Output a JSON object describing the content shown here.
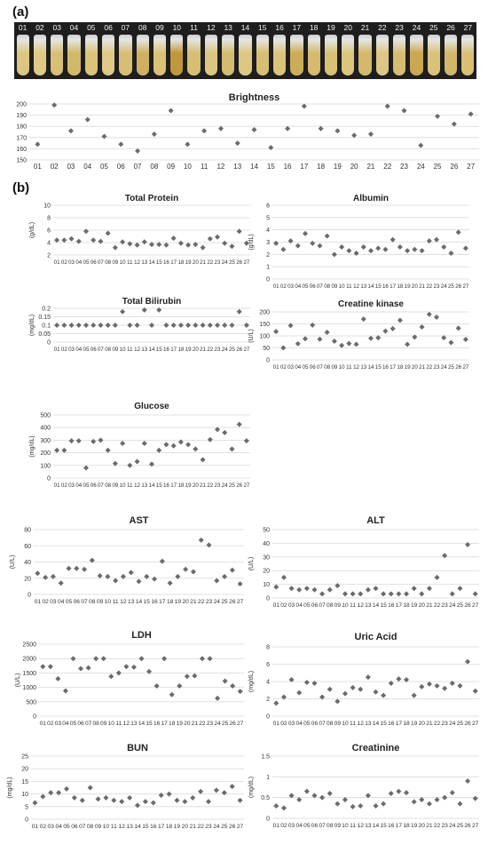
{
  "panel_a_label": "(a)",
  "panel_b_label": "(b)",
  "photo": {
    "tube_labels": [
      "01",
      "02",
      "03",
      "04",
      "05",
      "06",
      "07",
      "08",
      "09",
      "10",
      "11",
      "12",
      "13",
      "14",
      "15",
      "16",
      "17",
      "18",
      "19",
      "20",
      "21",
      "22",
      "23",
      "24",
      "25",
      "26",
      "27"
    ],
    "tube_colors": [
      "#e6cf86",
      "#e9d38a",
      "#e3c97a",
      "#dcc16e",
      "#e5cc7e",
      "#e8d28c",
      "#e2c778",
      "#d9b863",
      "#e4ca7c",
      "#c99d3c",
      "#e1c677",
      "#e7cf86",
      "#dec371",
      "#e8d08a",
      "#e2c778",
      "#e6cc80",
      "#d6b35c",
      "#dfc273",
      "#e3c97a",
      "#e6ce84",
      "#ddc070",
      "#e8d08b",
      "#e1c576",
      "#d4ae55",
      "#e5cb7e",
      "#dcbf6e",
      "#e3c87b"
    ]
  },
  "chart_data": [
    {
      "id": "brightness",
      "type": "scatter",
      "title": "Brightness",
      "ylabel": "",
      "ylim": [
        150,
        200
      ],
      "yticks": [
        150,
        160,
        170,
        180,
        190,
        200
      ],
      "categories": [
        "01",
        "02",
        "03",
        "04",
        "05",
        "06",
        "07",
        "08",
        "09",
        "10",
        "11",
        "12",
        "13",
        "14",
        "15",
        "16",
        "17",
        "18",
        "19",
        "20",
        "21",
        "22",
        "23",
        "24",
        "25",
        "26",
        "27"
      ],
      "values": [
        164,
        199,
        176,
        186,
        171,
        164,
        158,
        173,
        194,
        164,
        176,
        178,
        165,
        177,
        161,
        178,
        198,
        178,
        176,
        172,
        173,
        198,
        194,
        163,
        189,
        182,
        191
      ]
    },
    {
      "id": "total-protein",
      "type": "scatter",
      "title": "Total Protein",
      "ylabel": "(g/dL)",
      "ylim": [
        2,
        10
      ],
      "yticks": [
        2,
        4,
        6,
        8,
        10
      ],
      "categories": [
        "01",
        "02",
        "03",
        "04",
        "05",
        "06",
        "07",
        "08",
        "09",
        "10",
        "11",
        "12",
        "13",
        "14",
        "15",
        "16",
        "17",
        "18",
        "19",
        "20",
        "21",
        "22",
        "23",
        "24",
        "25",
        "26",
        "27"
      ],
      "values": [
        4.4,
        4.4,
        4.6,
        4.2,
        5.8,
        4.4,
        4.2,
        5.5,
        3.2,
        4.1,
        3.8,
        3.6,
        4.1,
        3.7,
        3.7,
        3.6,
        4.7,
        3.9,
        3.6,
        3.7,
        3.2,
        4.6,
        4.9,
        3.9,
        3.4,
        5.8,
        3.9
      ]
    },
    {
      "id": "albumin",
      "type": "scatter",
      "title": "Albumin",
      "ylabel": "(g/dL)",
      "ylim": [
        0,
        6
      ],
      "yticks": [
        0,
        1,
        2,
        3,
        4,
        5,
        6
      ],
      "categories": [
        "01",
        "02",
        "03",
        "04",
        "05",
        "06",
        "07",
        "08",
        "09",
        "10",
        "11",
        "12",
        "13",
        "14",
        "15",
        "16",
        "17",
        "18",
        "19",
        "20",
        "21",
        "22",
        "23",
        "24",
        "25",
        "26",
        "27"
      ],
      "values": [
        2.9,
        2.4,
        3.1,
        2.7,
        3.7,
        2.9,
        2.7,
        3.5,
        2.0,
        2.6,
        2.3,
        2.1,
        2.6,
        2.3,
        2.5,
        2.4,
        3.2,
        2.6,
        2.3,
        2.4,
        2.3,
        3.1,
        3.2,
        2.6,
        2.1,
        3.8,
        2.5
      ]
    },
    {
      "id": "total-bilirubin",
      "type": "scatter",
      "title": "Total Bilirubin",
      "ylabel": "(mg/dL)",
      "ylim": [
        0,
        0.2
      ],
      "yticks": [
        0,
        0.05,
        0.1,
        0.15,
        0.2
      ],
      "categories": [
        "01",
        "02",
        "03",
        "04",
        "05",
        "06",
        "07",
        "08",
        "09",
        "10",
        "11",
        "12",
        "13",
        "14",
        "15",
        "16",
        "17",
        "18",
        "19",
        "20",
        "21",
        "22",
        "23",
        "24",
        "25",
        "26",
        "27"
      ],
      "values": [
        0.1,
        0.1,
        0.1,
        0.1,
        0.1,
        0.1,
        0.1,
        0.1,
        0.1,
        0.18,
        0.1,
        0.1,
        0.19,
        0.1,
        0.19,
        0.1,
        0.1,
        0.1,
        0.1,
        0.1,
        0.1,
        0.1,
        0.1,
        0.1,
        0.1,
        0.18,
        0.1
      ]
    },
    {
      "id": "creatine-kinase",
      "type": "scatter",
      "title": "Creatine kinase",
      "ylabel": "(U/L)",
      "ylim": [
        0,
        200
      ],
      "yticks": [
        0,
        50,
        100,
        150,
        200
      ],
      "categories": [
        "01",
        "02",
        "03",
        "04",
        "05",
        "06",
        "07",
        "08",
        "09",
        "10",
        "11",
        "12",
        "13",
        "14",
        "15",
        "16",
        "17",
        "18",
        "19",
        "20",
        "21",
        "22",
        "23",
        "24",
        "25",
        "26",
        "27"
      ],
      "values": [
        118,
        50,
        143,
        67,
        88,
        145,
        86,
        115,
        78,
        60,
        68,
        65,
        170,
        90,
        92,
        120,
        130,
        165,
        65,
        95,
        137,
        190,
        178,
        92,
        72,
        132,
        85
      ]
    },
    {
      "id": "glucose",
      "type": "scatter",
      "title": "Glucose",
      "ylabel": "(mg/dL)",
      "ylim": [
        0,
        500
      ],
      "yticks": [
        0,
        100,
        200,
        300,
        400,
        500
      ],
      "categories": [
        "01",
        "02",
        "03",
        "04",
        "05",
        "06",
        "07",
        "08",
        "09",
        "10",
        "11",
        "12",
        "13",
        "14",
        "15",
        "16",
        "17",
        "18",
        "19",
        "20",
        "21",
        "22",
        "23",
        "24",
        "25",
        "26",
        "27"
      ],
      "values": [
        220,
        220,
        295,
        295,
        80,
        290,
        300,
        220,
        115,
        275,
        100,
        130,
        275,
        110,
        220,
        265,
        255,
        285,
        265,
        230,
        145,
        305,
        385,
        360,
        230,
        425,
        295
      ]
    },
    {
      "id": "ast",
      "type": "scatter",
      "title": "AST",
      "ylabel": "(U/L)",
      "ylim": [
        0,
        80
      ],
      "yticks": [
        0,
        20,
        40,
        60,
        80
      ],
      "categories": [
        "01",
        "02",
        "03",
        "04",
        "05",
        "06",
        "07",
        "08",
        "09",
        "10",
        "11",
        "12",
        "13",
        "14",
        "15",
        "16",
        "17",
        "18",
        "19",
        "20",
        "21",
        "22",
        "23",
        "24",
        "25",
        "26",
        "27"
      ],
      "values": [
        26,
        21,
        22,
        14,
        32,
        32,
        31,
        42,
        23,
        22,
        17,
        22,
        27,
        16,
        22,
        19,
        41,
        14,
        22,
        31,
        28,
        67,
        61,
        17,
        22,
        30,
        13
      ]
    },
    {
      "id": "alt",
      "type": "scatter",
      "title": "ALT",
      "ylabel": "(U/L)",
      "ylim": [
        0,
        50
      ],
      "yticks": [
        0,
        10,
        20,
        30,
        40,
        50
      ],
      "categories": [
        "01",
        "02",
        "03",
        "04",
        "05",
        "06",
        "07",
        "08",
        "09",
        "10",
        "11",
        "12",
        "13",
        "14",
        "15",
        "16",
        "17",
        "18",
        "19",
        "20",
        "21",
        "22",
        "23",
        "24",
        "25",
        "26",
        "27"
      ],
      "values": [
        8,
        15,
        7,
        6,
        7,
        6,
        3,
        6,
        9,
        3,
        3,
        3,
        6,
        7,
        3,
        3,
        3,
        3,
        7,
        3,
        7,
        15,
        31,
        3,
        7,
        39,
        3
      ]
    },
    {
      "id": "ldh",
      "type": "scatter",
      "title": "LDH",
      "ylabel": "(U/L)",
      "ylim": [
        0,
        2500
      ],
      "yticks": [
        0,
        500,
        1000,
        1500,
        2000,
        2500
      ],
      "categories": [
        "01",
        "02",
        "03",
        "04",
        "05",
        "06",
        "07",
        "08",
        "09",
        "10",
        "11",
        "12",
        "13",
        "14",
        "15",
        "16",
        "17",
        "18",
        "19",
        "20",
        "21",
        "22",
        "23",
        "24",
        "25",
        "26",
        "27"
      ],
      "values": [
        1720,
        1720,
        1300,
        880,
        2000,
        1650,
        1680,
        2000,
        2000,
        1380,
        1500,
        1720,
        1700,
        2000,
        1550,
        1050,
        2000,
        750,
        1050,
        1380,
        1400,
        2000,
        2000,
        620,
        1220,
        1050,
        860
      ]
    },
    {
      "id": "uric-acid",
      "type": "scatter",
      "title": "Uric Acid",
      "ylabel": "(mg/dL)",
      "ylim": [
        0,
        8
      ],
      "yticks": [
        0,
        2,
        4,
        6,
        8
      ],
      "categories": [
        "01",
        "02",
        "03",
        "04",
        "05",
        "06",
        "07",
        "08",
        "09",
        "10",
        "11",
        "12",
        "13",
        "14",
        "15",
        "16",
        "17",
        "18",
        "19",
        "20",
        "21",
        "22",
        "23",
        "24",
        "25",
        "26",
        "27"
      ],
      "values": [
        1.5,
        2.2,
        4.2,
        2.7,
        3.9,
        3.8,
        2.2,
        3.1,
        1.7,
        2.6,
        3.3,
        3.1,
        4.5,
        2.8,
        2.4,
        3.8,
        4.3,
        4.2,
        2.4,
        3.4,
        3.7,
        3.5,
        3.2,
        3.8,
        3.5,
        6.3,
        2.9
      ]
    },
    {
      "id": "bun",
      "type": "scatter",
      "title": "BUN",
      "ylabel": "(mg/dL)",
      "ylim": [
        0,
        25
      ],
      "yticks": [
        0,
        5,
        10,
        15,
        20,
        25
      ],
      "categories": [
        "01",
        "02",
        "03",
        "04",
        "05",
        "06",
        "07",
        "08",
        "09",
        "10",
        "11",
        "12",
        "13",
        "14",
        "15",
        "16",
        "17",
        "18",
        "19",
        "20",
        "21",
        "22",
        "23",
        "24",
        "25",
        "26",
        "27"
      ],
      "values": [
        6.5,
        9,
        10.5,
        10.5,
        12,
        8.5,
        7.5,
        12.5,
        8,
        8.5,
        7.5,
        7,
        8.5,
        5.5,
        7,
        6.5,
        9.5,
        10,
        7.5,
        7,
        8.5,
        11,
        7,
        11.5,
        10.5,
        13,
        7.5
      ]
    },
    {
      "id": "creatinine",
      "type": "scatter",
      "title": "Creatinine",
      "ylabel": "(mg/dL)",
      "ylim": [
        0,
        1.5
      ],
      "yticks": [
        0,
        0.5,
        1,
        1.5
      ],
      "categories": [
        "01",
        "02",
        "03",
        "04",
        "05",
        "06",
        "07",
        "08",
        "09",
        "10",
        "11",
        "12",
        "13",
        "14",
        "15",
        "16",
        "17",
        "18",
        "19",
        "20",
        "21",
        "22",
        "23",
        "24",
        "25",
        "26",
        "27"
      ],
      "values": [
        0.3,
        0.25,
        0.55,
        0.45,
        0.65,
        0.55,
        0.5,
        0.6,
        0.35,
        0.45,
        0.28,
        0.3,
        0.55,
        0.3,
        0.35,
        0.6,
        0.65,
        0.62,
        0.4,
        0.45,
        0.35,
        0.45,
        0.5,
        0.62,
        0.35,
        0.9,
        0.48
      ]
    }
  ]
}
